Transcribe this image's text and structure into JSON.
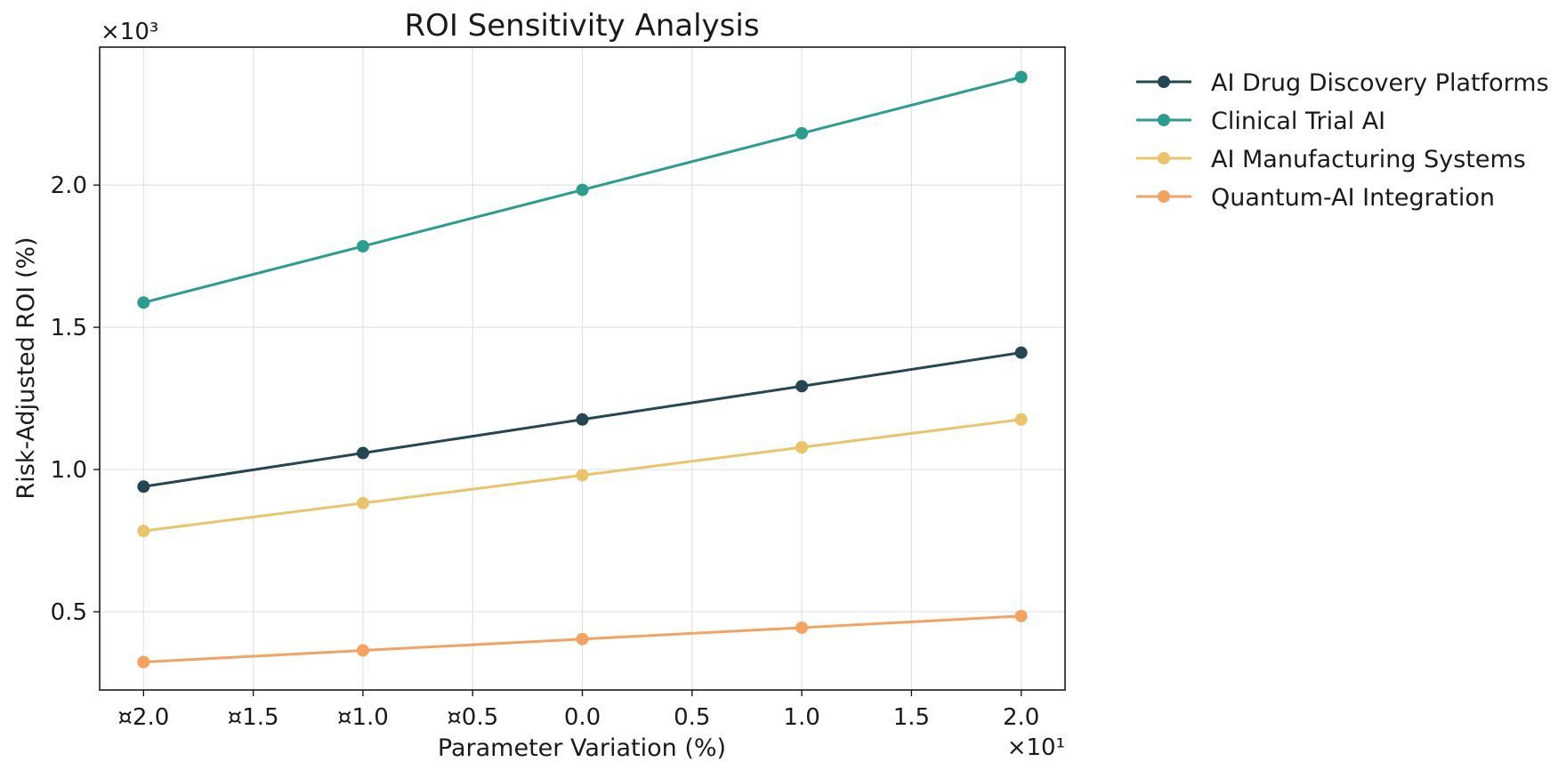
{
  "chart_data": {
    "type": "line",
    "title": "ROI Sensitivity Analysis",
    "xlabel": "Parameter Variation (%)",
    "ylabel": "Risk-Adjusted ROI (%)",
    "x_multiplier_label": "×10¹",
    "y_multiplier_label": "×10³",
    "x": [
      -20,
      -10,
      0,
      10,
      20
    ],
    "x_ticks": [
      -20,
      -15,
      -10,
      -5,
      0,
      5,
      10,
      15,
      20
    ],
    "x_tick_labels": [
      "¤2.0",
      "¤1.5",
      "¤1.0",
      "¤0.5",
      "0.0",
      "0.5",
      "1.0",
      "1.5",
      "2.0"
    ],
    "xlim": [
      -22,
      22
    ],
    "y_ticks": [
      500,
      1000,
      1500,
      2000
    ],
    "y_tick_labels": [
      "0.5",
      "1.0",
      "1.5",
      "2.0"
    ],
    "ylim": [
      225,
      2485
    ],
    "grid": true,
    "legend_position": "outside-right",
    "series": [
      {
        "name": "AI Drug Discovery Platforms",
        "color": "#264653",
        "values": [
          940,
          1058,
          1176,
          1293,
          1411
        ]
      },
      {
        "name": "Clinical Trial AI",
        "color": "#2a9d8f",
        "values": [
          1587,
          1785,
          1983,
          2182,
          2380
        ]
      },
      {
        "name": "AI Manufacturing Systems",
        "color": "#e9c46a",
        "values": [
          784,
          882,
          980,
          1078,
          1176
        ]
      },
      {
        "name": "Quantum-AI Integration",
        "color": "#f4a261",
        "values": [
          323,
          364,
          404,
          444,
          485
        ]
      }
    ]
  }
}
